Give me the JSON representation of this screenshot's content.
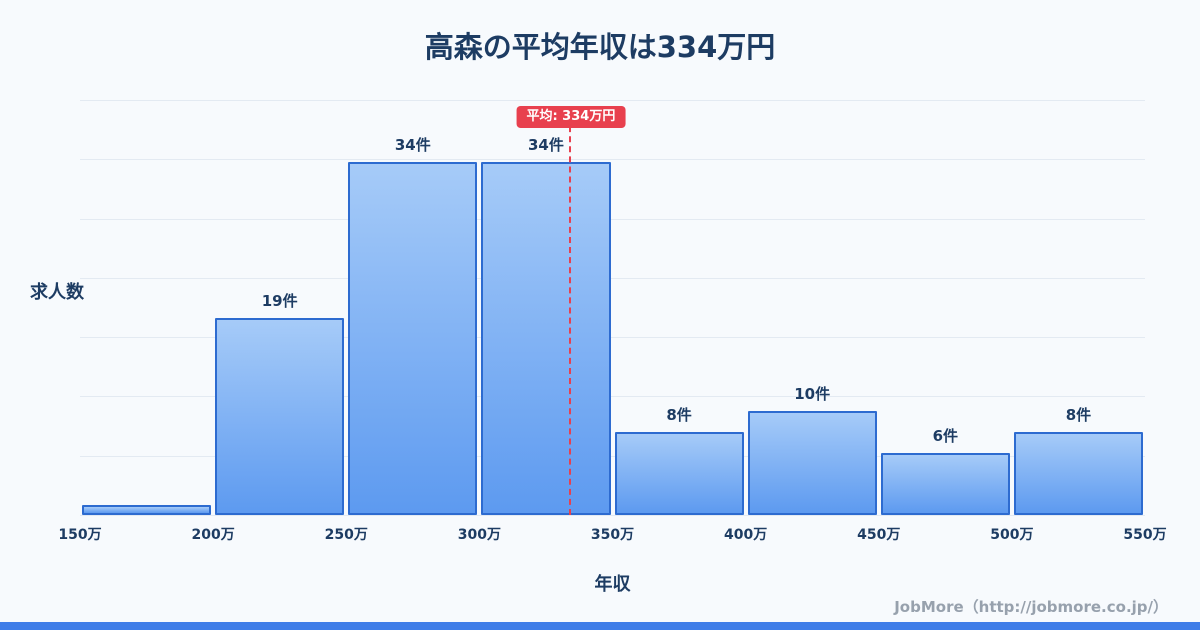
{
  "title": "高森の平均年収は334万円",
  "chart_data": {
    "type": "bar",
    "title": "高森の平均年収は334万円",
    "xlabel": "年収",
    "ylabel": "求人数",
    "bin_edges": [
      "150万",
      "200万",
      "250万",
      "300万",
      "350万",
      "400万",
      "450万",
      "500万",
      "550万"
    ],
    "x_range": [
      150,
      550
    ],
    "values": [
      1,
      19,
      34,
      34,
      8,
      10,
      6,
      8
    ],
    "bar_labels": [
      "",
      "19件",
      "34件",
      "34件",
      "8件",
      "10件",
      "6件",
      "8件"
    ],
    "ylim": [
      0,
      40
    ],
    "grid": true,
    "gridline_count": 8,
    "legend": "none",
    "average": {
      "label": "平均: 334万円",
      "value": 334,
      "x_min": 150,
      "x_max": 550
    }
  },
  "footer": {
    "credit": "JobMore（http://jobmore.co.jp/）"
  },
  "colors": {
    "bg": "#f7fafd",
    "navy": "#1d3c63",
    "bar_top": "#a6cbf8",
    "bar_bottom": "#5d9af0",
    "bar_border": "#2d6bd0",
    "grid": "#e3eaf2",
    "red": "#e8404e",
    "strip": "#3f7de8",
    "footer_gray": "#97a1ad"
  }
}
